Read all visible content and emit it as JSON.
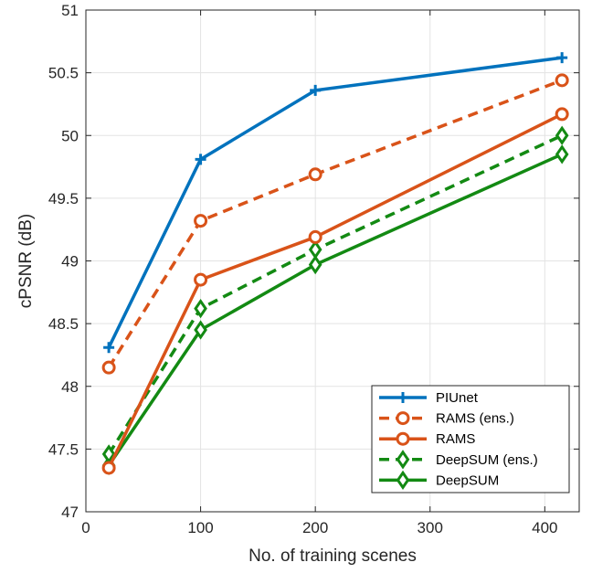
{
  "chart_data": {
    "type": "line",
    "title": "",
    "xlabel": "No. of training scenes",
    "ylabel": "cPSNR (dB)",
    "xlim": [
      0,
      430
    ],
    "ylim": [
      47,
      51
    ],
    "xticks": [
      0,
      100,
      200,
      300,
      400
    ],
    "yticks": [
      47,
      47.5,
      48,
      48.5,
      49,
      49.5,
      50,
      50.5,
      51
    ],
    "grid": true,
    "legend_position": "bottom-right",
    "series": [
      {
        "name": "PIUnet",
        "x": [
          20,
          100,
          200,
          415
        ],
        "y": [
          48.31,
          49.81,
          50.36,
          50.62
        ],
        "color": "#0072BD",
        "dash": "solid",
        "marker": "plus"
      },
      {
        "name": "RAMS (ens.)",
        "x": [
          20,
          100,
          200,
          415
        ],
        "y": [
          48.15,
          49.32,
          49.69,
          50.44
        ],
        "color": "#D95319",
        "dash": "dashed",
        "marker": "circle"
      },
      {
        "name": "RAMS",
        "x": [
          20,
          100,
          200,
          415
        ],
        "y": [
          47.35,
          48.85,
          49.19,
          50.17
        ],
        "color": "#D95319",
        "dash": "solid",
        "marker": "circle"
      },
      {
        "name": "DeepSUM (ens.)",
        "x": [
          20,
          100,
          200,
          415
        ],
        "y": [
          47.46,
          48.62,
          49.09,
          50.0
        ],
        "color": "#138A13",
        "dash": "dashed",
        "marker": "diamond"
      },
      {
        "name": "DeepSUM",
        "x": [
          20,
          100,
          200,
          415
        ],
        "y": [
          47.37,
          48.45,
          48.97,
          49.85
        ],
        "color": "#138A13",
        "dash": "solid",
        "marker": "diamond"
      }
    ]
  }
}
